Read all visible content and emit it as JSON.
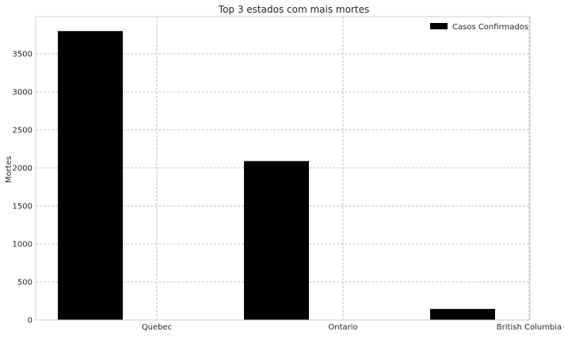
{
  "chart_data": {
    "type": "bar",
    "title": "Top 3 estados com mais mortes",
    "xlabel": "",
    "ylabel": "Mortes",
    "categories": [
      "Quebec",
      "Ontario",
      "British Columbia"
    ],
    "series": [
      {
        "name": "Casos Confirmados",
        "values": [
          3800,
          2090,
          145
        ],
        "color": "#000000"
      }
    ],
    "ylim": [
      0,
      3990
    ],
    "yticks": [
      0,
      500,
      1000,
      1500,
      2000,
      2500,
      3000,
      3500
    ],
    "grid": true,
    "legend": "top-right",
    "colors": {
      "background": "#ffffff",
      "grid": "#b0b0b0",
      "frame": "#cccccc",
      "text": "#262626"
    }
  }
}
